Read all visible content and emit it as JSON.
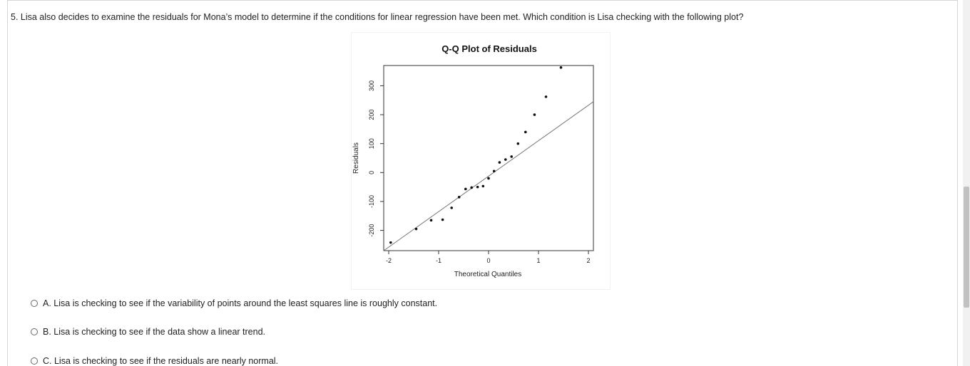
{
  "question": {
    "text": "5. Lisa also decides to examine the residuals for Mona’s model to determine if the conditions for linear regression have been met. Which condition is Lisa checking with the following plot?"
  },
  "choices": [
    {
      "letter": "A.",
      "text": "Lisa is checking to see if the variability of points around the least squares line is roughly constant."
    },
    {
      "letter": "B.",
      "text": "Lisa is checking to see if the data show a linear trend."
    },
    {
      "letter": "C.",
      "text": "Lisa is checking to see if the residuals are nearly normal."
    }
  ],
  "chart_data": {
    "type": "scatter",
    "title": "Q-Q Plot of Residuals",
    "xlabel": "Theoretical Quantiles",
    "ylabel": "Residuals",
    "x_ticks": [
      -2,
      -1,
      0,
      1,
      2
    ],
    "y_ticks": [
      -200,
      -100,
      0,
      100,
      200,
      300
    ],
    "xlim": [
      -2.1,
      2.1
    ],
    "ylim": [
      -270,
      370
    ],
    "points": [
      {
        "x": -1.96,
        "y": -242
      },
      {
        "x": -1.45,
        "y": -195
      },
      {
        "x": -1.15,
        "y": -165
      },
      {
        "x": -0.92,
        "y": -163
      },
      {
        "x": -0.74,
        "y": -122
      },
      {
        "x": -0.59,
        "y": -85
      },
      {
        "x": -0.46,
        "y": -57
      },
      {
        "x": -0.34,
        "y": -52
      },
      {
        "x": -0.22,
        "y": -50
      },
      {
        "x": -0.11,
        "y": -47
      },
      {
        "x": 0.0,
        "y": -20
      },
      {
        "x": 0.11,
        "y": 5
      },
      {
        "x": 0.22,
        "y": 35
      },
      {
        "x": 0.34,
        "y": 45
      },
      {
        "x": 0.46,
        "y": 55
      },
      {
        "x": 0.59,
        "y": 100
      },
      {
        "x": 0.74,
        "y": 140
      },
      {
        "x": 0.92,
        "y": 200
      },
      {
        "x": 1.15,
        "y": 262
      },
      {
        "x": 1.45,
        "y": 363
      }
    ],
    "reference_line": {
      "x1": -2.1,
      "y1": -270,
      "x2": 2.1,
      "y2": 245
    },
    "grid": false,
    "legend": "none"
  }
}
